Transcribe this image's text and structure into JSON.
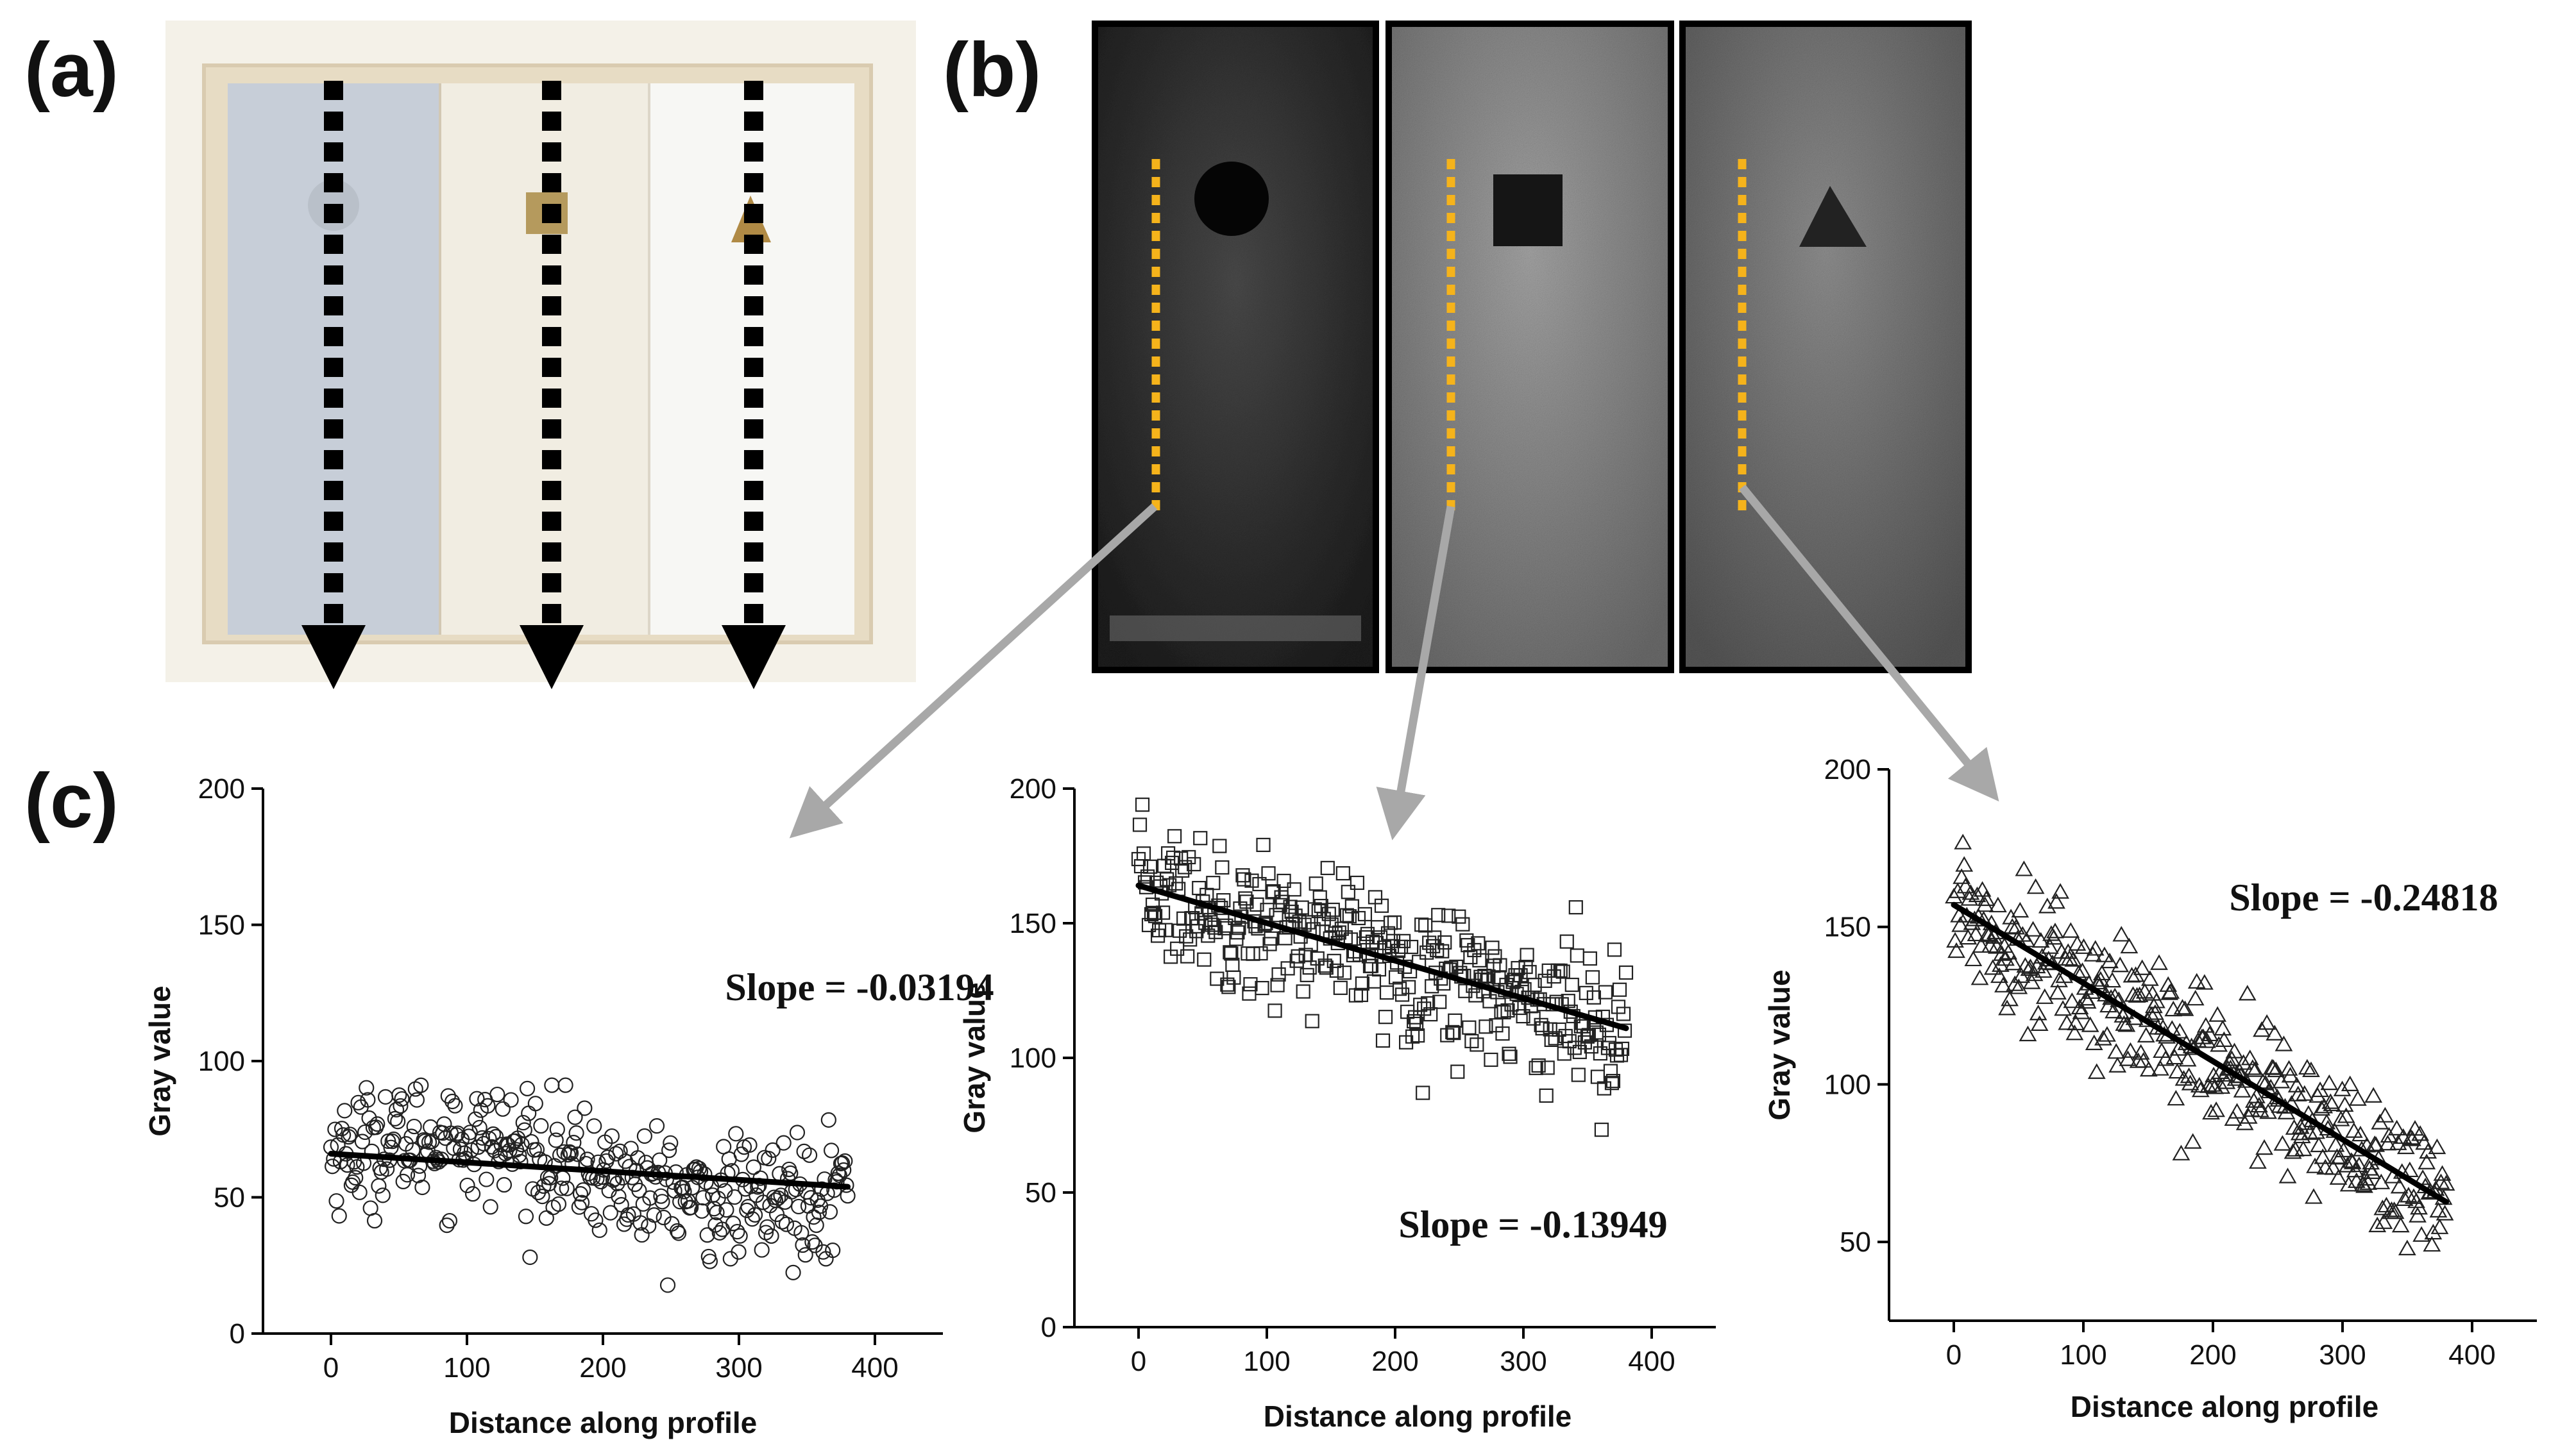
{
  "panel_labels": {
    "a": "(a)",
    "b": "(b)",
    "c": "(c)"
  },
  "colors": {
    "profile_dotted_line": "#f5b31b",
    "connector_arrow": "#a8a8a8",
    "marker": "#222222",
    "fit_line": "#000000",
    "holder_frame": "#ece3cf",
    "block_blue": "#c5ccd6",
    "block_cream": "#f3efe4",
    "block_white": "#f7f7f5"
  },
  "photo": {
    "description_icons": [
      "circle-inclusion-icon",
      "square-inclusion-icon",
      "triangle-inclusion-icon"
    ]
  },
  "ultrasound": {
    "shapes": [
      "circle",
      "square",
      "triangle"
    ]
  },
  "chart_data": [
    {
      "type": "scatter",
      "marker": "circle",
      "title": "",
      "xlabel": "Distance along profile",
      "ylabel": "Gray value",
      "xlim": [
        -50,
        450
      ],
      "ylim": [
        0,
        200
      ],
      "xticks": [
        0,
        100,
        200,
        300,
        400
      ],
      "yticks": [
        0,
        50,
        100,
        150,
        200
      ],
      "fit": {
        "slope": -0.03194,
        "intercept": 66,
        "x_range": [
          0,
          380
        ]
      },
      "annotation": "Slope = -0.03194",
      "noise": 11,
      "num_points": 380
    },
    {
      "type": "scatter",
      "marker": "square",
      "title": "",
      "xlabel": "Distance along profile",
      "ylabel": "Gray value",
      "xlim": [
        -50,
        450
      ],
      "ylim": [
        0,
        200
      ],
      "xticks": [
        0,
        100,
        200,
        300,
        400
      ],
      "yticks": [
        0,
        50,
        100,
        150,
        200
      ],
      "fit": {
        "slope": -0.13949,
        "intercept": 164,
        "x_range": [
          0,
          380
        ]
      },
      "annotation": "Slope = -0.13949",
      "noise": 13,
      "num_points": 380
    },
    {
      "type": "scatter",
      "marker": "triangle",
      "title": "",
      "xlabel": "Distance along profile",
      "ylabel": "Gray value",
      "xlim": [
        -50,
        450
      ],
      "ylim": [
        25,
        200
      ],
      "xticks": [
        0,
        100,
        200,
        300,
        400
      ],
      "yticks": [
        50,
        100,
        150,
        200
      ],
      "fit": {
        "slope": -0.24818,
        "intercept": 157,
        "x_range": [
          0,
          380
        ]
      },
      "annotation": "Slope = -0.24818",
      "noise": 11,
      "num_points": 380
    }
  ]
}
